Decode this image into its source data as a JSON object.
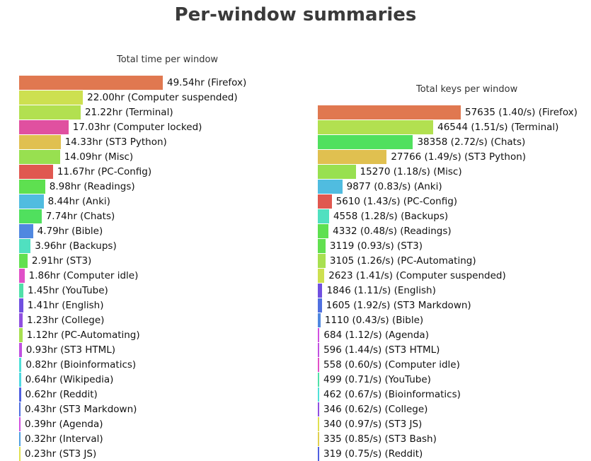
{
  "title": "Per-window summaries",
  "chart_data": [
    {
      "type": "bar",
      "orientation": "horizontal",
      "title": "Total time per window",
      "unit": "hr",
      "xlim": [
        0,
        49.54
      ],
      "rows": [
        {
          "value": 49.54,
          "label": "49.54hr (Firefox)",
          "color": "#e07850"
        },
        {
          "value": 22.0,
          "label": "22.00hr (Computer suspended)",
          "color": "#cde050"
        },
        {
          "value": 21.22,
          "label": "21.22hr (Terminal)",
          "color": "#b2e050"
        },
        {
          "value": 17.03,
          "label": "17.03hr (Computer locked)",
          "color": "#e050a0"
        },
        {
          "value": 14.33,
          "label": "14.33hr (ST3 Python)",
          "color": "#e0c050"
        },
        {
          "value": 14.09,
          "label": "14.09hr (Misc)",
          "color": "#98e050"
        },
        {
          "value": 11.67,
          "label": "11.67hr (PC-Config)",
          "color": "#e05850"
        },
        {
          "value": 8.98,
          "label": "8.98hr (Readings)",
          "color": "#5ee050"
        },
        {
          "value": 8.44,
          "label": "8.44hr (Anki)",
          "color": "#50bce0"
        },
        {
          "value": 7.74,
          "label": "7.74hr (Chats)",
          "color": "#50e05e"
        },
        {
          "value": 4.79,
          "label": "4.79hr (Bible)",
          "color": "#5088e0"
        },
        {
          "value": 3.96,
          "label": "3.96hr (Backups)",
          "color": "#50e0c0"
        },
        {
          "value": 2.91,
          "label": "2.91hr (ST3)",
          "color": "#62e050"
        },
        {
          "value": 1.86,
          "label": "1.86hr (Computer idle)",
          "color": "#e050c8"
        },
        {
          "value": 1.45,
          "label": "1.45hr (YouTube)",
          "color": "#50e0a8"
        },
        {
          "value": 1.41,
          "label": "1.41hr (English)",
          "color": "#7050e0"
        },
        {
          "value": 1.23,
          "label": "1.23hr (College)",
          "color": "#9050e0"
        },
        {
          "value": 1.12,
          "label": "1.12hr (PC-Automating)",
          "color": "#a8e050"
        },
        {
          "value": 0.93,
          "label": "0.93hr (ST3 HTML)",
          "color": "#c050e0"
        },
        {
          "value": 0.82,
          "label": "0.82hr (Bioinformatics)",
          "color": "#50e0d8"
        },
        {
          "value": 0.64,
          "label": "0.64hr (Wikipedia)",
          "color": "#50d8e0"
        },
        {
          "value": 0.62,
          "label": "0.62hr (Reddit)",
          "color": "#5060e0"
        },
        {
          "value": 0.43,
          "label": "0.43hr (ST3 Markdown)",
          "color": "#5070e0"
        },
        {
          "value": 0.39,
          "label": "0.39hr (Agenda)",
          "color": "#d050e0"
        },
        {
          "value": 0.32,
          "label": "0.32hr (Interval)",
          "color": "#50a0e0"
        },
        {
          "value": 0.23,
          "label": "0.23hr (ST3 JS)",
          "color": "#e0e050"
        }
      ]
    },
    {
      "type": "bar",
      "orientation": "horizontal",
      "title": "Total keys per window",
      "unit": "keys",
      "xlim": [
        0,
        57635
      ],
      "rows": [
        {
          "value": 57635,
          "label": "57635 (1.40/s) (Firefox)",
          "color": "#e07850"
        },
        {
          "value": 46544,
          "label": "46544 (1.51/s) (Terminal)",
          "color": "#b2e050"
        },
        {
          "value": 38358,
          "label": "38358 (2.72/s) (Chats)",
          "color": "#50e05e"
        },
        {
          "value": 27766,
          "label": "27766 (1.49/s) (ST3 Python)",
          "color": "#e0c050"
        },
        {
          "value": 15270,
          "label": "15270 (1.18/s) (Misc)",
          "color": "#98e050"
        },
        {
          "value": 9877,
          "label": "9877 (0.83/s) (Anki)",
          "color": "#50bce0"
        },
        {
          "value": 5610,
          "label": "5610 (1.43/s) (PC-Config)",
          "color": "#e05850"
        },
        {
          "value": 4558,
          "label": "4558 (1.28/s) (Backups)",
          "color": "#50e0c0"
        },
        {
          "value": 4332,
          "label": "4332 (0.48/s) (Readings)",
          "color": "#5ee050"
        },
        {
          "value": 3119,
          "label": "3119 (0.93/s) (ST3)",
          "color": "#62e050"
        },
        {
          "value": 3105,
          "label": "3105 (1.26/s) (PC-Automating)",
          "color": "#a8e050"
        },
        {
          "value": 2623,
          "label": "2623 (1.41/s) (Computer suspended)",
          "color": "#cde050"
        },
        {
          "value": 1846,
          "label": "1846 (1.11/s) (English)",
          "color": "#7050e0"
        },
        {
          "value": 1605,
          "label": "1605 (1.92/s) (ST3 Markdown)",
          "color": "#5070e0"
        },
        {
          "value": 1110,
          "label": "1110 (0.43/s) (Bible)",
          "color": "#5088e0"
        },
        {
          "value": 684,
          "label": "684 (1.12/s) (Agenda)",
          "color": "#d050e0"
        },
        {
          "value": 596,
          "label": "596 (1.44/s) (ST3 HTML)",
          "color": "#c050e0"
        },
        {
          "value": 558,
          "label": "558 (0.60/s) (Computer idle)",
          "color": "#e050c8"
        },
        {
          "value": 499,
          "label": "499 (0.71/s) (YouTube)",
          "color": "#50e0a8"
        },
        {
          "value": 462,
          "label": "462 (0.67/s) (Bioinformatics)",
          "color": "#50e0d8"
        },
        {
          "value": 346,
          "label": "346 (0.62/s) (College)",
          "color": "#9050e0"
        },
        {
          "value": 340,
          "label": "340 (0.97/s) (ST3 JS)",
          "color": "#e0e050"
        },
        {
          "value": 335,
          "label": "335 (0.85/s) (ST3 Bash)",
          "color": "#e0d050"
        },
        {
          "value": 319,
          "label": "319 (0.75/s) (Reddit)",
          "color": "#5060e0"
        }
      ]
    }
  ]
}
